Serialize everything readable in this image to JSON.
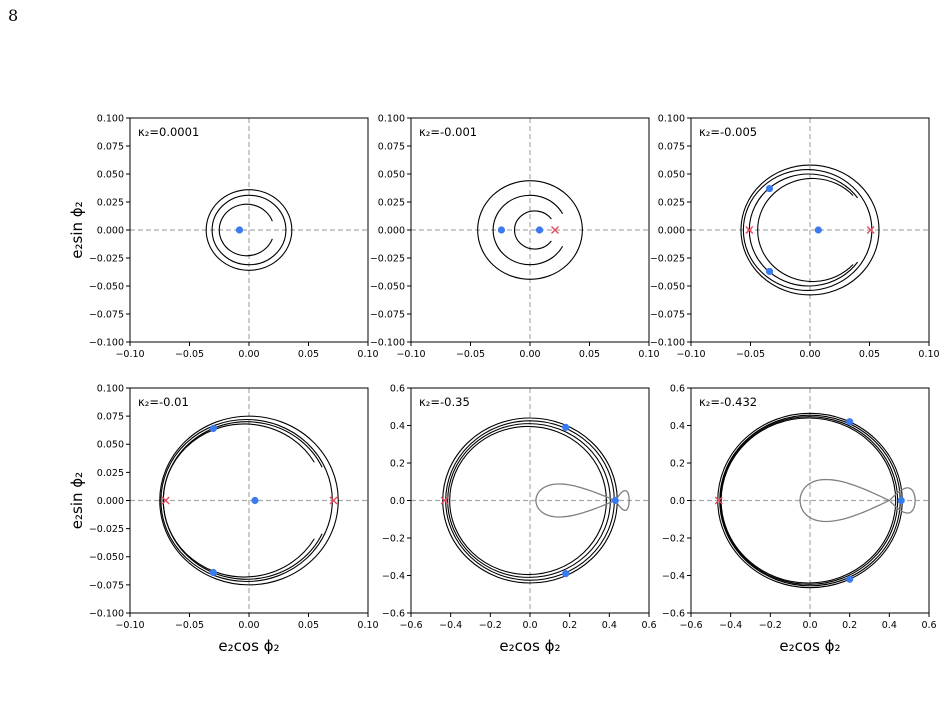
{
  "page_number": "8",
  "colors": {
    "orbit": "#000000",
    "separatrix": "#808080",
    "stable_point": "#3b7bf0",
    "unstable_point": "#e84a5f",
    "guide_line": "#aaaaaa"
  },
  "chart_data": [
    {
      "type": "scatter",
      "annotation": "κ₂=0.0001",
      "xlabel": "",
      "ylabel": "e₂sin ϕ₂",
      "xlim": [
        -0.1,
        0.1
      ],
      "ylim": [
        -0.1,
        0.1
      ],
      "xticks": [
        "−0.10",
        "−0.05",
        "0.00",
        "0.05",
        "0.10"
      ],
      "yticks": [
        "−0.100",
        "−0.075",
        "−0.050",
        "−0.025",
        "0.000",
        "0.025",
        "0.050",
        "0.075",
        "0.100"
      ],
      "xtick_values": [
        -0.1,
        -0.05,
        0,
        0.05,
        0.1
      ],
      "ytick_values": [
        -0.1,
        -0.075,
        -0.05,
        -0.025,
        0,
        0.025,
        0.05,
        0.075,
        0.1
      ],
      "stable_points": [
        [
          -0.008,
          0.0
        ]
      ],
      "unstable_points": [],
      "orbits": [
        {
          "kind": "circle",
          "cx": 0.0,
          "cy": 0.0,
          "r": 0.036
        },
        {
          "kind": "circle",
          "cx": 0.0,
          "cy": 0.0,
          "r": 0.031
        },
        {
          "kind": "arc",
          "cx": -0.002,
          "cy": 0.0,
          "r": 0.023,
          "from_deg": 20,
          "to_deg": 340
        }
      ],
      "separatrix": null
    },
    {
      "type": "scatter",
      "annotation": "κ₂=-0.001",
      "xlabel": "",
      "ylabel": "",
      "xlim": [
        -0.1,
        0.1
      ],
      "ylim": [
        -0.1,
        0.1
      ],
      "xticks": [
        "−0.10",
        "−0.05",
        "0.00",
        "0.05",
        "0.10"
      ],
      "yticks": [
        "−0.100",
        "−0.075",
        "−0.050",
        "−0.025",
        "0.000",
        "0.025",
        "0.050",
        "0.075",
        "0.100"
      ],
      "xtick_values": [
        -0.1,
        -0.05,
        0,
        0.05,
        0.1
      ],
      "ytick_values": [
        -0.1,
        -0.075,
        -0.05,
        -0.025,
        0,
        0.025,
        0.05,
        0.075,
        0.1
      ],
      "stable_points": [
        [
          -0.024,
          0.0
        ],
        [
          0.008,
          0.0
        ]
      ],
      "unstable_points": [
        [
          0.021,
          0.0
        ]
      ],
      "orbits": [
        {
          "kind": "circle",
          "cx": 0.0,
          "cy": 0.0,
          "r": 0.044
        },
        {
          "kind": "arc",
          "cx": 0.0,
          "cy": 0.0,
          "r": 0.031,
          "from_deg": 28,
          "to_deg": 332
        },
        {
          "kind": "arc",
          "cx": 0.004,
          "cy": 0.0,
          "r": 0.017,
          "from_deg": 35,
          "to_deg": 325
        }
      ],
      "separatrix": null
    },
    {
      "type": "scatter",
      "annotation": "κ₂=-0.005",
      "xlabel": "",
      "ylabel": "",
      "xlim": [
        -0.1,
        0.1
      ],
      "ylim": [
        -0.1,
        0.1
      ],
      "xticks": [
        "−0.10",
        "−0.05",
        "0.00",
        "0.05",
        "0.10"
      ],
      "yticks": [
        "−0.100",
        "−0.075",
        "−0.050",
        "−0.025",
        "0.000",
        "0.025",
        "0.050",
        "0.075",
        "0.100"
      ],
      "xtick_values": [
        -0.1,
        -0.05,
        0,
        0.05,
        0.1
      ],
      "ytick_values": [
        -0.1,
        -0.075,
        -0.05,
        -0.025,
        0,
        0.025,
        0.05,
        0.075,
        0.1
      ],
      "stable_points": [
        [
          0.007,
          0.0
        ],
        [
          -0.034,
          0.037
        ],
        [
          -0.034,
          -0.037
        ]
      ],
      "unstable_points": [
        [
          -0.051,
          0.0
        ],
        [
          0.051,
          0.0
        ]
      ],
      "orbits": [
        {
          "kind": "circle",
          "cx": 0.0,
          "cy": 0.0,
          "r": 0.058
        },
        {
          "kind": "circle",
          "cx": -0.002,
          "cy": 0.0,
          "r": 0.054
        },
        {
          "kind": "arc",
          "cx": -0.001,
          "cy": 0.0,
          "r": 0.05,
          "from_deg": 35,
          "to_deg": 325
        },
        {
          "kind": "arc",
          "cx": 0.002,
          "cy": 0.0,
          "r": 0.046,
          "from_deg": 42,
          "to_deg": 318
        }
      ],
      "separatrix": null
    },
    {
      "type": "scatter",
      "annotation": "κ₂=-0.01",
      "xlabel": "e₂cos ϕ₂",
      "ylabel": "e₂sin ϕ₂",
      "xlim": [
        -0.1,
        0.1
      ],
      "ylim": [
        -0.1,
        0.1
      ],
      "xticks": [
        "−0.10",
        "−0.05",
        "0.00",
        "0.05",
        "0.10"
      ],
      "yticks": [
        "−0.100",
        "−0.075",
        "−0.050",
        "−0.025",
        "0.000",
        "0.025",
        "0.050",
        "0.075",
        "0.100"
      ],
      "xtick_values": [
        -0.1,
        -0.05,
        0,
        0.05,
        0.1
      ],
      "ytick_values": [
        -0.1,
        -0.075,
        -0.05,
        -0.025,
        0,
        0.025,
        0.05,
        0.075,
        0.1
      ],
      "stable_points": [
        [
          0.005,
          0.0
        ],
        [
          -0.03,
          0.064
        ],
        [
          -0.03,
          -0.064
        ]
      ],
      "unstable_points": [
        [
          -0.07,
          0.0
        ],
        [
          0.071,
          0.0
        ]
      ],
      "orbits": [
        {
          "kind": "circle",
          "cx": 0.0,
          "cy": 0.0,
          "r": 0.075
        },
        {
          "kind": "circle",
          "cx": -0.002,
          "cy": 0.0,
          "r": 0.072
        },
        {
          "kind": "arc",
          "cx": -0.004,
          "cy": 0.0,
          "r": 0.068,
          "from_deg": 30,
          "to_deg": 330
        },
        {
          "kind": "arc",
          "cx": -0.002,
          "cy": 0.0,
          "r": 0.07,
          "from_deg": 25,
          "to_deg": 335
        }
      ],
      "separatrix": null
    },
    {
      "type": "scatter",
      "annotation": "κ₂=-0.35",
      "xlabel": "e₂cos ϕ₂",
      "ylabel": "",
      "xlim": [
        -0.6,
        0.6
      ],
      "ylim": [
        -0.6,
        0.6
      ],
      "xticks": [
        "−0.6",
        "−0.4",
        "−0.2",
        "0.0",
        "0.2",
        "0.4",
        "0.6"
      ],
      "yticks": [
        "−0.6",
        "−0.4",
        "−0.2",
        "0.0",
        "0.2",
        "0.4",
        "0.6"
      ],
      "xtick_values": [
        -0.6,
        -0.4,
        -0.2,
        0,
        0.2,
        0.4,
        0.6
      ],
      "ytick_values": [
        -0.6,
        -0.4,
        -0.2,
        0,
        0.2,
        0.4,
        0.6
      ],
      "stable_points": [
        [
          0.43,
          0.0
        ],
        [
          0.18,
          0.39
        ],
        [
          0.18,
          -0.39
        ]
      ],
      "unstable_points": [
        [
          -0.43,
          0.0
        ]
      ],
      "orbits": [
        {
          "kind": "circle",
          "cx": 0.0,
          "cy": 0.0,
          "r": 0.44
        },
        {
          "kind": "circle",
          "cx": 0.0,
          "cy": 0.0,
          "r": 0.425
        },
        {
          "kind": "circle",
          "cx": -0.005,
          "cy": 0.0,
          "r": 0.41
        },
        {
          "kind": "circle",
          "cx": -0.01,
          "cy": 0.0,
          "r": 0.395
        }
      ],
      "separatrix": {
        "x_start": 0.03,
        "x_cross": 0.43,
        "x_end": 0.5,
        "lobe_height": 0.11
      }
    },
    {
      "type": "scatter",
      "annotation": "κ₂=-0.432",
      "xlabel": "e₂cos ϕ₂",
      "ylabel": "",
      "xlim": [
        -0.6,
        0.6
      ],
      "ylim": [
        -0.6,
        0.6
      ],
      "xticks": [
        "−0.6",
        "−0.4",
        "−0.2",
        "0.0",
        "0.2",
        "0.4",
        "0.6"
      ],
      "yticks": [
        "−0.6",
        "−0.4",
        "−0.2",
        "0.0",
        "0.2",
        "0.4",
        "0.6"
      ],
      "xtick_values": [
        -0.6,
        -0.4,
        -0.2,
        0,
        0.2,
        0.4,
        0.6
      ],
      "ytick_values": [
        -0.6,
        -0.4,
        -0.2,
        0,
        0.2,
        0.4,
        0.6
      ],
      "stable_points": [
        [
          0.46,
          0.0
        ],
        [
          0.2,
          0.42
        ],
        [
          0.2,
          -0.42
        ]
      ],
      "unstable_points": [
        [
          -0.46,
          0.0
        ]
      ],
      "orbits": [
        {
          "kind": "circle",
          "cx": 0.0,
          "cy": 0.0,
          "r": 0.465
        },
        {
          "kind": "circle",
          "cx": 0.0,
          "cy": 0.0,
          "r": 0.455
        },
        {
          "kind": "circle",
          "cx": -0.005,
          "cy": 0.0,
          "r": 0.447
        },
        {
          "kind": "circle",
          "cx": -0.008,
          "cy": 0.0,
          "r": 0.44
        }
      ],
      "separatrix": {
        "x_start": -0.05,
        "x_cross": 0.4,
        "x_end": 0.53,
        "lobe_height": 0.14
      }
    }
  ]
}
